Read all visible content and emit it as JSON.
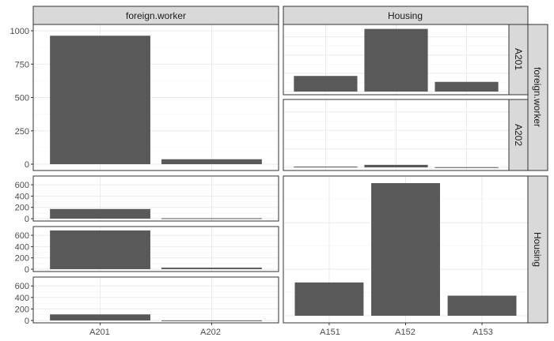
{
  "chart_data": {
    "type": "bar",
    "title": "",
    "xlabel": "",
    "ylabel": "",
    "facet_strips": {
      "top": [
        "foreign.worker",
        "Housing"
      ],
      "right": [
        "foreign.worker",
        "Housing"
      ],
      "right_sub": [
        "A201",
        "A202"
      ]
    },
    "colors": {
      "bar": "#595959",
      "strip_fill": "#d9d9d9",
      "grid_major": "#ebebeb",
      "grid_minor": "#f5f5f5",
      "border": "#333333"
    },
    "panels": [
      {
        "id": "fw-fw",
        "xvar": "foreign.worker",
        "categories": [
          "A201",
          "A202"
        ],
        "values": [
          963,
          37
        ],
        "ylim": [
          0,
          1000
        ],
        "yticks": [
          "0",
          "250",
          "500",
          "750",
          "1000"
        ]
      },
      {
        "id": "housing-fw-A201",
        "xvar": "Housing",
        "categories": [
          "A151",
          "A152",
          "A153"
        ],
        "values": [
          171,
          686,
          106
        ],
        "ylim": [
          0,
          700
        ],
        "yticks": []
      },
      {
        "id": "housing-fw-A202",
        "xvar": "Housing",
        "categories": [
          "A151",
          "A152",
          "A153"
        ],
        "values": [
          8,
          27,
          2
        ],
        "ylim": [
          0,
          700
        ],
        "yticks": []
      },
      {
        "id": "fw-housing-A151",
        "xvar": "foreign.worker",
        "categories": [
          "A201",
          "A202"
        ],
        "values": [
          171,
          8
        ],
        "ylim": [
          0,
          713
        ],
        "yticks": [
          "0",
          "200",
          "400",
          "600"
        ]
      },
      {
        "id": "fw-housing-A152",
        "xvar": "foreign.worker",
        "categories": [
          "A201",
          "A202"
        ],
        "values": [
          686,
          27
        ],
        "ylim": [
          0,
          713
        ],
        "yticks": [
          "0",
          "200",
          "400",
          "600"
        ]
      },
      {
        "id": "fw-housing-A153",
        "xvar": "foreign.worker",
        "categories": [
          "A201",
          "A202"
        ],
        "values": [
          106,
          2
        ],
        "ylim": [
          0,
          713
        ],
        "yticks": [
          "0",
          "200",
          "400",
          "600"
        ]
      },
      {
        "id": "housing-housing",
        "xvar": "Housing",
        "categories": [
          "A151",
          "A152",
          "A153"
        ],
        "values": [
          179,
          713,
          108
        ],
        "ylim": [
          0,
          713
        ],
        "yticks": []
      }
    ],
    "x_axis": {
      "left": [
        "A201",
        "A202"
      ],
      "right": [
        "A151",
        "A152",
        "A153"
      ]
    }
  }
}
